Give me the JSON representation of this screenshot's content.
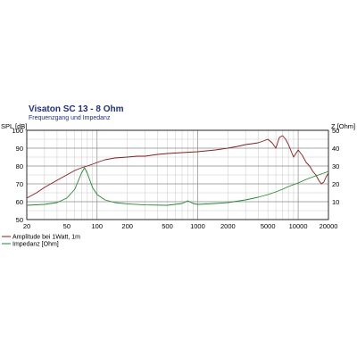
{
  "chart_data": {
    "type": "line",
    "title": "Visaton SC 13 - 8 Ohm",
    "subtitle": "Frequenzgang und Impedanz",
    "xlabel": "",
    "ylabel_left": "SPL [dB]",
    "ylabel_right": "Z [Ohm]",
    "x_scale": "log",
    "xlim": [
      20,
      20000
    ],
    "ylim_left": [
      50,
      100
    ],
    "ylim_right": [
      0,
      50
    ],
    "x_ticks": [
      "20",
      "50",
      "100",
      "200",
      "500",
      "1000",
      "2000",
      "5000",
      "10000",
      "20000"
    ],
    "y_ticks_left": [
      "50",
      "60",
      "70",
      "80",
      "90",
      "100"
    ],
    "y_ticks_right": [
      "10",
      "20",
      "30",
      "40",
      "50"
    ],
    "grid": true,
    "legend_position": "bottom-left",
    "series": [
      {
        "name": "Amplitude bei 1Watt, 1m",
        "axis": "left",
        "color": "#8b1a1a",
        "x": [
          20,
          25,
          30,
          40,
          50,
          60,
          70,
          80,
          90,
          100,
          120,
          150,
          200,
          250,
          300,
          400,
          500,
          700,
          1000,
          1500,
          2000,
          2500,
          3000,
          3500,
          4000,
          4500,
          5000,
          5500,
          6000,
          6500,
          7000,
          7500,
          8000,
          9000,
          10000,
          11000,
          12000,
          13000,
          14000,
          15000,
          16000,
          17000,
          18000,
          19000,
          20000
        ],
        "y": [
          62,
          65,
          68,
          72,
          75,
          77.5,
          79,
          80,
          81,
          82,
          83.5,
          84.5,
          85,
          85.5,
          85.5,
          86.5,
          87,
          87.5,
          88,
          89,
          90,
          91,
          92,
          92.5,
          93,
          94,
          95,
          93,
          90,
          96,
          97,
          95,
          92,
          85,
          89,
          86,
          82,
          80,
          77,
          75,
          72,
          70,
          71,
          74,
          76
        ]
      },
      {
        "name": "Impedanz [Ohm]",
        "axis": "right",
        "color": "#1f8a2e",
        "x": [
          20,
          30,
          40,
          50,
          60,
          70,
          75,
          80,
          90,
          100,
          120,
          150,
          200,
          300,
          500,
          700,
          800,
          900,
          1000,
          1500,
          2000,
          3000,
          4000,
          5000,
          6000,
          7000,
          8000,
          10000,
          12000,
          15000,
          18000,
          20000
        ],
        "y": [
          8,
          8.5,
          9.5,
          12,
          17,
          26,
          29,
          26,
          18,
          14,
          11,
          9.5,
          8.8,
          8.2,
          8,
          9,
          10.5,
          9,
          8.5,
          9,
          9.5,
          11,
          12.5,
          14,
          15.5,
          17,
          18.5,
          20.5,
          22.5,
          24.5,
          26,
          27
        ]
      }
    ]
  }
}
